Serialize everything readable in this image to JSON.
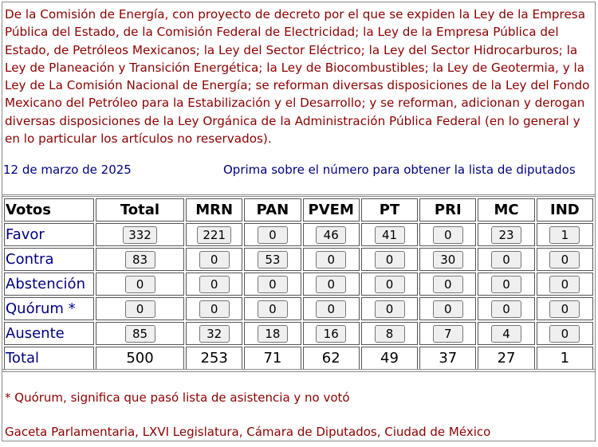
{
  "description": "De la Comisión de Energía, con proyecto de decreto por el que se expiden la Ley de la Empresa Pública del Estado, de la Comisión Federal de Electricidad; la Ley de la Empresa Pública del Estado, de Petróleos Mexicanos; la Ley del Sector Eléctrico; la Ley del Sector Hidrocarburos; la Ley de Planeación y Transición Energética; la Ley de Biocombustibles; la Ley de Geotermia, y la Ley de La Comisión Nacional de Energía; se reforman diversas disposiciones de la Ley del Fondo Mexicano del Petróleo para la Estabilización y el Desarrollo; y se reforman, adicionan y derogan diversas disposiciones de la Ley Orgánica de la Administración Pública Federal (en lo general y en lo particular los artículos no reservados).",
  "date": "12 de marzo de 2025",
  "hint": "Oprima sobre el número para obtener la lista de diputados",
  "table": {
    "headers": [
      "Votos",
      "Total",
      "MRN",
      "PAN",
      "PVEM",
      "PT",
      "PRI",
      "MC",
      "IND"
    ],
    "rows": [
      {
        "label": "Favor",
        "values": [
          "332",
          "221",
          "0",
          "46",
          "41",
          "0",
          "23",
          "1"
        ]
      },
      {
        "label": "Contra",
        "values": [
          "83",
          "0",
          "53",
          "0",
          "0",
          "30",
          "0",
          "0"
        ]
      },
      {
        "label": "Abstención",
        "values": [
          "0",
          "0",
          "0",
          "0",
          "0",
          "0",
          "0",
          "0"
        ]
      },
      {
        "label": "Quórum *",
        "values": [
          "0",
          "0",
          "0",
          "0",
          "0",
          "0",
          "0",
          "0"
        ]
      },
      {
        "label": "Ausente",
        "values": [
          "85",
          "32",
          "18",
          "16",
          "8",
          "7",
          "4",
          "0"
        ]
      }
    ],
    "total": {
      "label": "Total",
      "values": [
        "500",
        "253",
        "71",
        "62",
        "49",
        "37",
        "27",
        "1"
      ]
    }
  },
  "notes": {
    "quorum": "* Quórum, significa que pasó lista de asistencia y no votó",
    "source": "Gaceta Parlamentaria, LXVI Legislatura, Cámara de Diputados, Ciudad de México"
  },
  "colors": {
    "description_text": "#8b0000",
    "navy_text": "#000080"
  }
}
